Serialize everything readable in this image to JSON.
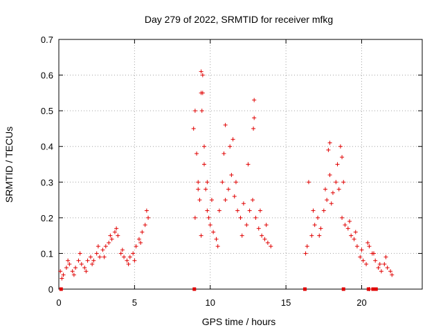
{
  "chart_data": {
    "type": "scatter",
    "title": "Day 279 of 2022, SRMTID for receiver mfkg",
    "xlabel": "GPS time / hours",
    "ylabel": "SRMTID / TECUs",
    "xlim": [
      0,
      24
    ],
    "ylim": [
      0,
      0.7
    ],
    "x_ticks": [
      0,
      5,
      10,
      15,
      20
    ],
    "y_ticks": [
      0,
      0.1,
      0.2,
      0.3,
      0.4,
      0.5,
      0.6,
      0.7
    ],
    "grid": true,
    "marker": "plus",
    "marker_color": "#e00000",
    "series": [
      {
        "name": "SRMTID",
        "x": [
          0.1,
          0.3,
          0.5,
          0.7,
          0.9,
          1.1,
          1.3,
          1.5,
          1.7,
          1.9,
          2.1,
          2.3,
          2.5,
          2.7,
          2.9,
          3.1,
          3.3,
          3.5,
          3.7,
          3.9,
          4.1,
          4.3,
          4.5,
          4.7,
          4.9,
          5.1,
          5.3,
          5.5,
          5.7,
          5.9,
          0.2,
          0.6,
          1.0,
          1.4,
          1.8,
          2.2,
          2.6,
          3.0,
          3.4,
          3.8,
          4.2,
          4.6,
          5.0,
          5.4,
          5.8,
          8.9,
          9.0,
          9.1,
          9.2,
          9.3,
          9.4,
          9.5,
          9.6,
          9.7,
          9.8,
          9.9,
          10.0,
          10.2,
          10.4,
          10.6,
          10.8,
          11.0,
          11.2,
          11.4,
          11.6,
          11.8,
          12.0,
          12.2,
          12.4,
          12.6,
          12.8,
          13.0,
          13.2,
          13.4,
          13.6,
          13.8,
          14.0,
          9.0,
          9.2,
          9.4,
          9.6,
          9.8,
          10.1,
          10.5,
          10.9,
          11.3,
          11.7,
          12.1,
          12.5,
          12.9,
          13.3,
          13.7,
          9.4,
          9.5,
          9.45,
          12.9,
          12.85,
          11.0,
          11.5,
          16.3,
          16.5,
          16.7,
          16.9,
          17.1,
          17.3,
          17.5,
          17.7,
          17.9,
          18.1,
          18.3,
          18.5,
          18.7,
          18.9,
          19.1,
          19.3,
          19.5,
          19.7,
          19.9,
          20.1,
          20.3,
          20.5,
          20.7,
          20.9,
          21.1,
          21.3,
          21.5,
          21.7,
          21.9,
          22.0,
          16.4,
          16.8,
          17.2,
          17.6,
          18.0,
          18.4,
          18.8,
          19.2,
          19.6,
          20.0,
          20.4,
          20.8,
          21.2,
          21.6,
          17.8,
          17.9,
          18.6,
          18.7,
          20.5
        ],
        "y": [
          0.05,
          0.04,
          0.06,
          0.07,
          0.05,
          0.06,
          0.08,
          0.07,
          0.06,
          0.08,
          0.09,
          0.08,
          0.1,
          0.09,
          0.11,
          0.12,
          0.13,
          0.14,
          0.16,
          0.15,
          0.1,
          0.09,
          0.08,
          0.09,
          0.1,
          0.12,
          0.14,
          0.16,
          0.18,
          0.2,
          0.03,
          0.08,
          0.04,
          0.1,
          0.05,
          0.07,
          0.12,
          0.09,
          0.15,
          0.17,
          0.11,
          0.07,
          0.08,
          0.13,
          0.22,
          0.45,
          0.5,
          0.38,
          0.3,
          0.25,
          0.55,
          0.6,
          0.4,
          0.28,
          0.22,
          0.2,
          0.18,
          0.16,
          0.14,
          0.22,
          0.3,
          0.25,
          0.28,
          0.32,
          0.26,
          0.22,
          0.2,
          0.24,
          0.18,
          0.22,
          0.25,
          0.2,
          0.17,
          0.15,
          0.14,
          0.13,
          0.12,
          0.2,
          0.28,
          0.15,
          0.35,
          0.3,
          0.25,
          0.12,
          0.38,
          0.4,
          0.3,
          0.15,
          0.35,
          0.48,
          0.22,
          0.18,
          0.61,
          0.55,
          0.5,
          0.53,
          0.45,
          0.46,
          0.42,
          0.1,
          0.3,
          0.15,
          0.18,
          0.2,
          0.17,
          0.22,
          0.25,
          0.32,
          0.27,
          0.3,
          0.28,
          0.2,
          0.18,
          0.17,
          0.15,
          0.14,
          0.12,
          0.09,
          0.08,
          0.07,
          0.12,
          0.1,
          0.08,
          0.06,
          0.05,
          0.07,
          0.06,
          0.05,
          0.04,
          0.12,
          0.22,
          0.15,
          0.28,
          0.24,
          0.35,
          0.3,
          0.19,
          0.16,
          0.11,
          0.13,
          0.1,
          0.07,
          0.09,
          0.39,
          0.41,
          0.4,
          0.37,
          0.0
        ],
        "estimated": true
      }
    ],
    "data_gap_markers_x": [
      0.15,
      8.95,
      16.25,
      18.8,
      20.45,
      20.75,
      20.95
    ]
  }
}
